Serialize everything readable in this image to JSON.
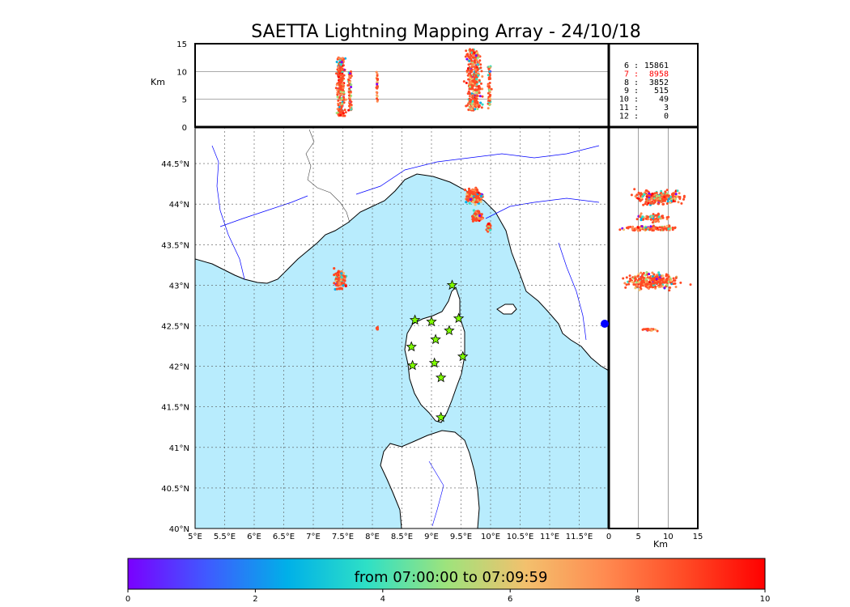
{
  "title": "SAETTA Lightning Mapping Array - 24/10/18",
  "colorbar": {
    "label": "from 07:00:00 to 07:09:59",
    "min": 0,
    "max": 10,
    "ticks": [
      "0",
      "2",
      "4",
      "6",
      "8",
      "10"
    ],
    "colors": [
      "#7a00ff",
      "#3f5bff",
      "#00b0e8",
      "#2ee0c6",
      "#9ee37c",
      "#f3c06d",
      "#ff8a50",
      "#ff4a25",
      "#ff0000"
    ]
  },
  "stats": [
    {
      "label": "6 :",
      "value": "15861",
      "color": "#000000"
    },
    {
      "label": "7 :",
      "value": "8958",
      "color": "#ff0000"
    },
    {
      "label": "8 :",
      "value": "3852",
      "color": "#000000"
    },
    {
      "label": "9 :",
      "value": "515",
      "color": "#000000"
    },
    {
      "label": "10 :",
      "value": "49",
      "color": "#000000"
    },
    {
      "label": "11 :",
      "value": "3",
      "color": "#000000"
    },
    {
      "label": "12 :",
      "value": "0",
      "color": "#000000"
    }
  ],
  "colors": {
    "sea": "#b8ecfd",
    "land": "#ffffff",
    "coast": "#000000",
    "river": "#0000ff",
    "grid": "#555555",
    "station": "#7fff00",
    "station_edge": "#000000",
    "source": "#ff4a25"
  },
  "chart_data": {
    "type": "scatter",
    "title": "SAETTA Lightning Mapping Array - 24/10/18",
    "map": {
      "xlim": [
        5.0,
        12.0
      ],
      "ylim": [
        40.0,
        44.95
      ],
      "xticks": [
        "5°E",
        "5.5°E",
        "6°E",
        "6.5°E",
        "7°E",
        "7.5°E",
        "8°E",
        "8.5°E",
        "9°E",
        "9.5°E",
        "10°E",
        "10.5°E",
        "11°E",
        "11.5°E"
      ],
      "xtick_values": [
        5.0,
        5.5,
        6.0,
        6.5,
        7.0,
        7.5,
        8.0,
        8.5,
        9.0,
        9.5,
        10.0,
        10.5,
        11.0,
        11.5
      ],
      "yticks": [
        "40°N",
        "40.5°N",
        "41°N",
        "41.5°N",
        "42°N",
        "42.5°N",
        "43°N",
        "43.5°N",
        "44°N",
        "44.5°N"
      ],
      "ytick_values": [
        40.0,
        40.5,
        41.0,
        41.5,
        42.0,
        42.5,
        43.0,
        43.5,
        44.0,
        44.5
      ],
      "grid": true,
      "stations": [
        {
          "lon": 9.35,
          "lat": 43.0
        },
        {
          "lon": 8.72,
          "lat": 42.57
        },
        {
          "lon": 9.0,
          "lat": 42.55
        },
        {
          "lon": 9.46,
          "lat": 42.59
        },
        {
          "lon": 9.3,
          "lat": 42.44
        },
        {
          "lon": 9.07,
          "lat": 42.33
        },
        {
          "lon": 8.66,
          "lat": 42.24
        },
        {
          "lon": 9.53,
          "lat": 42.12
        },
        {
          "lon": 9.05,
          "lat": 42.04
        },
        {
          "lon": 8.68,
          "lat": 42.01
        },
        {
          "lon": 9.16,
          "lat": 41.86
        },
        {
          "lon": 9.16,
          "lat": 41.37
        }
      ],
      "source_clusters": [
        {
          "lon": 7.45,
          "lat": 43.07,
          "dlon": 0.12,
          "dlat": 0.15,
          "n": 170
        },
        {
          "lon": 9.72,
          "lat": 44.1,
          "dlon": 0.18,
          "dlat": 0.12,
          "n": 220
        },
        {
          "lon": 9.78,
          "lat": 43.85,
          "dlon": 0.12,
          "dlat": 0.08,
          "n": 100
        },
        {
          "lon": 9.97,
          "lat": 43.72,
          "dlon": 0.05,
          "dlat": 0.07,
          "n": 50
        },
        {
          "lon": 8.08,
          "lat": 42.46,
          "dlon": 0.02,
          "dlat": 0.03,
          "n": 10
        }
      ]
    },
    "altitude_lon": {
      "ylabel": "Km",
      "ylim": [
        0,
        15
      ],
      "yticks": [
        "0",
        "5",
        "10",
        "15"
      ],
      "ytick_values": [
        0,
        5,
        10,
        15
      ],
      "xlim": [
        5.0,
        12.0
      ],
      "columns": [
        {
          "lon": 7.47,
          "dlon": 0.1,
          "z_min": 2,
          "z_max": 12.5,
          "n": 260
        },
        {
          "lon": 7.62,
          "dlon": 0.05,
          "z_min": 3,
          "z_max": 10,
          "n": 60
        },
        {
          "lon": 8.08,
          "dlon": 0.02,
          "z_min": 4.5,
          "z_max": 10,
          "n": 25
        },
        {
          "lon": 9.72,
          "dlon": 0.18,
          "z_min": 3,
          "z_max": 14,
          "n": 330
        },
        {
          "lon": 9.98,
          "dlon": 0.04,
          "z_min": 3,
          "z_max": 11,
          "n": 60
        }
      ]
    },
    "lat_altitude": {
      "xlabel": "Km",
      "xlim": [
        0,
        15
      ],
      "xticks": [
        "0",
        "5",
        "10",
        "15"
      ],
      "xtick_values": [
        0,
        5,
        10,
        15
      ],
      "ylim": [
        40.0,
        44.95
      ],
      "bands": [
        {
          "lat": 44.08,
          "dlat": 0.12,
          "z_min": 3,
          "z_max": 14,
          "n": 260
        },
        {
          "lat": 43.83,
          "dlat": 0.06,
          "z_min": 4,
          "z_max": 11,
          "n": 70
        },
        {
          "lat": 43.7,
          "dlat": 0.04,
          "z_min": 1,
          "z_max": 13,
          "n": 110
        },
        {
          "lat": 43.05,
          "dlat": 0.14,
          "z_min": 1,
          "z_max": 14,
          "n": 300
        },
        {
          "lat": 42.45,
          "dlat": 0.02,
          "z_min": 5,
          "z_max": 9,
          "n": 25
        }
      ]
    }
  }
}
